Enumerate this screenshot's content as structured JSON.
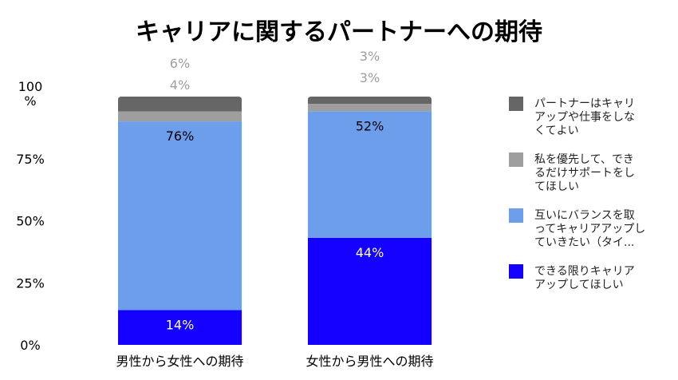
{
  "chart_data": {
    "type": "bar",
    "stacked": true,
    "title": "キャリアに関するパートナーへの期待",
    "categories": [
      "男性から女性への期待",
      "女性から男性への期待"
    ],
    "y_ticks": [
      "0%",
      "25%",
      "50%",
      "75%",
      "100%"
    ],
    "ylim": [
      0,
      100
    ],
    "series": [
      {
        "name": "できる限りキャリアアップしてほしい",
        "legend_lines": [
          "できる限りキャリア",
          "アップしてほしい"
        ],
        "color": "#1400ff",
        "values": [
          14,
          44
        ],
        "labels": [
          "14%",
          "44%"
        ]
      },
      {
        "name": "互いにバランスを取ってキャリアアップしていきたい（タイ...",
        "legend_lines": [
          "互いにバランスを取",
          "ってキャリアアップし",
          "ていきたい（タイ..."
        ],
        "color": "#6d9eeb",
        "values": [
          76,
          52
        ],
        "labels": [
          "76%",
          "52%"
        ]
      },
      {
        "name": "私を優先して、できるだけサポートをしてほしい",
        "legend_lines": [
          "私を優先して、でき",
          "るだけサポートをし",
          "てほしい"
        ],
        "color": "#9e9e9e",
        "values": [
          4,
          3
        ],
        "labels": [
          "4%",
          "3%"
        ]
      },
      {
        "name": "パートナーはキャリアップや仕事をしなくてよい",
        "legend_lines": [
          "パートナーはキャリ",
          "アップや仕事をしな",
          "くてよい"
        ],
        "color": "#666666",
        "values": [
          6,
          3
        ],
        "labels": [
          "6%",
          "3%"
        ]
      }
    ],
    "legend_position": "right",
    "grid": false
  }
}
